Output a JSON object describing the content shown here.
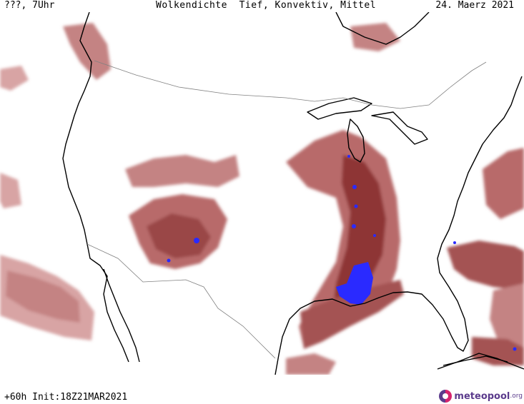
{
  "header": {
    "left": "???, 7Uhr",
    "title": "Wolkendichte  Tief, Konvektiv, Mittel",
    "date": "24. Maerz 2021"
  },
  "footer": {
    "run_info": "+60h Init:18Z21MAR2021"
  },
  "logo": {
    "name": "meteopool",
    "suffix": ".org"
  },
  "legend_colors": {
    "light_cloud": "#d8a4a4",
    "medium_cloud": "#b86a6a",
    "dense_cloud": "#8e3434",
    "convective": "#2a2aff",
    "coastline": "#000000",
    "borders": "#808080"
  }
}
